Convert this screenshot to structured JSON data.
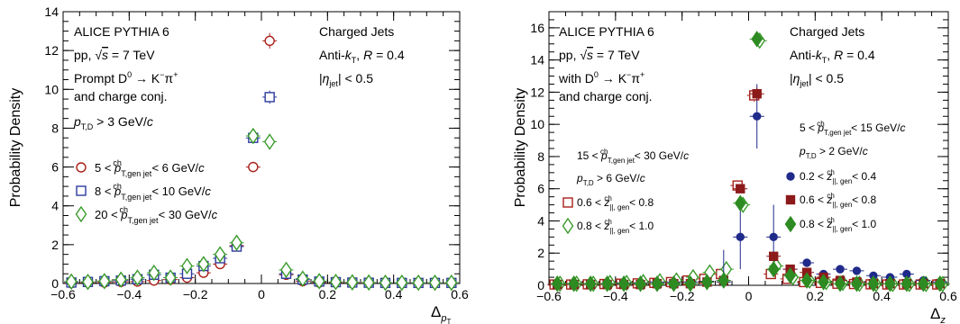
{
  "chart_data": [
    {
      "type": "scatter",
      "ylabel": "Probability Density",
      "xlabel": "Δ_{p_T}",
      "xlim": [
        -0.6,
        0.6
      ],
      "ylim": [
        0,
        14
      ],
      "xticks": [
        "−0.6",
        "−0.4",
        "−0.2",
        "0",
        "0.2",
        "0.4",
        "0.6"
      ],
      "yticks": [
        "0",
        "2",
        "4",
        "6",
        "8",
        "10",
        "12",
        "14"
      ],
      "annotations_left": [
        "ALICE PYTHIA 6",
        "pp, √s = 7 TeV",
        "Prompt D⁰ → K⁻π⁺",
        "and charge conj.",
        "p_T,D > 3 GeV/c"
      ],
      "annotations_right": [
        "Charged Jets",
        "Anti-kT, R = 0.4",
        "|η_jet| < 0.5"
      ],
      "legend_position": "middle-left",
      "series": [
        {
          "name": "5 < p_T,gen jet^ch < 6 GeV/c",
          "marker": "open-circle",
          "color": "#a8201a",
          "x": [
            -0.575,
            -0.525,
            -0.475,
            -0.425,
            -0.375,
            -0.325,
            -0.275,
            -0.225,
            -0.175,
            -0.125,
            -0.075,
            -0.025,
            0.025,
            0.075,
            0.125,
            0.175,
            0.225,
            0.275,
            0.325,
            0.375,
            0.425,
            0.475,
            0.525,
            0.575
          ],
          "y": [
            0.02,
            0.04,
            0.05,
            0.08,
            0.1,
            0.15,
            0.2,
            0.3,
            0.55,
            1.0,
            1.95,
            6.0,
            12.5,
            0.45,
            0.12,
            0.05,
            0.04,
            0.03,
            0.02,
            0.02,
            0.02,
            0.02,
            0.02,
            0.02
          ]
        },
        {
          "name": "8 < p_T,gen jet^ch < 10 GeV/c",
          "marker": "open-square",
          "color": "#2b3a9c",
          "x": [
            -0.575,
            -0.525,
            -0.475,
            -0.425,
            -0.375,
            -0.325,
            -0.275,
            -0.225,
            -0.175,
            -0.125,
            -0.075,
            -0.025,
            0.025,
            0.075,
            0.125,
            0.175,
            0.225,
            0.275,
            0.325,
            0.375,
            0.425,
            0.475,
            0.525,
            0.575
          ],
          "y": [
            0.05,
            0.08,
            0.12,
            0.15,
            0.22,
            0.45,
            0.3,
            0.5,
            0.9,
            1.3,
            1.9,
            7.5,
            9.6,
            0.5,
            0.2,
            0.1,
            0.07,
            0.05,
            0.04,
            0.03,
            0.03,
            0.03,
            0.03,
            0.03
          ]
        },
        {
          "name": "20 < p_T,gen jet^ch < 30 GeV/c",
          "marker": "open-diamond",
          "color": "#3a9b2b",
          "x": [
            -0.575,
            -0.525,
            -0.475,
            -0.425,
            -0.375,
            -0.325,
            -0.275,
            -0.225,
            -0.175,
            -0.125,
            -0.075,
            -0.025,
            0.025,
            0.075,
            0.125,
            0.175,
            0.225,
            0.275,
            0.325,
            0.375,
            0.425,
            0.475,
            0.525,
            0.575
          ],
          "y": [
            0.1,
            0.08,
            0.12,
            0.2,
            0.3,
            0.55,
            0.3,
            0.9,
            1.0,
            1.5,
            2.1,
            7.6,
            7.3,
            0.7,
            0.25,
            0.12,
            0.08,
            0.06,
            0.05,
            0.04,
            0.04,
            0.04,
            0.04,
            0.04
          ]
        }
      ]
    },
    {
      "type": "scatter",
      "ylabel": "Probability Density",
      "xlabel": "Δ_z",
      "xlim": [
        -0.6,
        0.6
      ],
      "ylim": [
        0,
        17
      ],
      "xticks": [
        "−0.6",
        "−0.4",
        "−0.2",
        "0",
        "0.2",
        "0.4",
        "0.6"
      ],
      "yticks": [
        "0",
        "2",
        "4",
        "6",
        "8",
        "10",
        "12",
        "14",
        "16"
      ],
      "annotations_left": [
        "ALICE PYTHIA 6",
        "pp, √s = 7 TeV",
        "with D⁰ → K⁻π⁺",
        "and charge conj."
      ],
      "annotations_right": [
        "Charged Jets",
        "Anti-kT, R = 0.4",
        "|η_jet| < 0.5"
      ],
      "legend_left_header": [
        "15 < p_T,gen jet^ch < 30 GeV/c",
        "p_T,D > 6 GeV/c"
      ],
      "legend_right_header": [
        "5 < p_T,gen jet^ch < 15 GeV/c",
        "p_T,D > 2 GeV/c"
      ],
      "series": [
        {
          "name": "0.6 < z_||,gen^ch < 0.8",
          "group": "high",
          "marker": "open-square",
          "color": "#a8201a",
          "x": [
            -0.575,
            -0.525,
            -0.475,
            -0.425,
            -0.375,
            -0.325,
            -0.275,
            -0.225,
            -0.175,
            -0.125,
            -0.075,
            -0.025,
            0.025,
            0.075,
            0.125,
            0.175,
            0.225,
            0.275,
            0.325,
            0.375,
            0.425,
            0.475,
            0.525,
            0.575
          ],
          "y": [
            0.05,
            0.05,
            0.06,
            0.08,
            0.1,
            0.12,
            0.15,
            0.2,
            0.3,
            0.4,
            0.7,
            6.2,
            11.8,
            0.7,
            0.4,
            0.2,
            0.15,
            0.1,
            0.08,
            0.06,
            0.05,
            0.05,
            0.05,
            0.05
          ]
        },
        {
          "name": "0.8 < z_||,gen^ch < 1.0",
          "group": "high",
          "marker": "open-diamond",
          "color": "#3a9b2b",
          "x": [
            -0.575,
            -0.525,
            -0.475,
            -0.425,
            -0.375,
            -0.325,
            -0.275,
            -0.225,
            -0.175,
            -0.125,
            -0.075,
            -0.025,
            0.025,
            0.075,
            0.125,
            0.175,
            0.225,
            0.275,
            0.325,
            0.375,
            0.425,
            0.475,
            0.525,
            0.575
          ],
          "y": [
            0.1,
            0.1,
            0.1,
            0.15,
            0.15,
            0.2,
            0.25,
            0.3,
            0.5,
            0.8,
            1.0,
            5.0,
            15.2,
            1.2,
            0.5,
            0.3,
            0.2,
            0.15,
            0.1,
            0.08,
            0.08,
            0.08,
            0.08,
            0.08
          ]
        },
        {
          "name": "0.2 < z_||,gen^ch < 0.4",
          "group": "low",
          "marker": "filled-circle",
          "color": "#1f2a8a",
          "x": [
            -0.575,
            -0.525,
            -0.475,
            -0.425,
            -0.375,
            -0.325,
            -0.275,
            -0.225,
            -0.175,
            -0.125,
            -0.075,
            -0.025,
            0.025,
            0.075,
            0.125,
            0.175,
            0.225,
            0.275,
            0.325,
            0.375,
            0.425,
            0.475,
            0.525,
            0.575
          ],
          "y": [
            0.1,
            0.1,
            0.1,
            0.1,
            0.15,
            0.15,
            0.2,
            0.2,
            0.2,
            0.25,
            0.2,
            3.0,
            10.5,
            3.0,
            1.0,
            1.4,
            0.7,
            1.0,
            0.9,
            0.6,
            0.5,
            0.7,
            0.3,
            0.2
          ]
        },
        {
          "name": "0.6 < z_||,gen^ch < 0.8",
          "group": "low",
          "marker": "filled-square",
          "color": "#8c1a1a",
          "x": [
            -0.575,
            -0.525,
            -0.475,
            -0.425,
            -0.375,
            -0.325,
            -0.275,
            -0.225,
            -0.175,
            -0.125,
            -0.075,
            -0.025,
            0.025,
            0.075,
            0.125,
            0.175,
            0.225,
            0.275,
            0.325,
            0.375,
            0.425,
            0.475,
            0.525,
            0.575
          ],
          "y": [
            0.05,
            0.05,
            0.05,
            0.05,
            0.05,
            0.05,
            0.1,
            0.1,
            0.1,
            0.2,
            0.3,
            6.0,
            11.9,
            1.8,
            1.0,
            0.8,
            0.5,
            0.3,
            0.2,
            0.1,
            0.1,
            0.1,
            0.1,
            0.1
          ]
        },
        {
          "name": "0.8 < z_||,gen^ch < 1.0",
          "group": "low",
          "marker": "filled-diamond",
          "color": "#2e8b22",
          "x": [
            -0.575,
            -0.525,
            -0.475,
            -0.425,
            -0.375,
            -0.325,
            -0.275,
            -0.225,
            -0.175,
            -0.125,
            -0.075,
            -0.025,
            0.025,
            0.075,
            0.125,
            0.175,
            0.225,
            0.275,
            0.325,
            0.375,
            0.425,
            0.475,
            0.525,
            0.575
          ],
          "y": [
            0.1,
            0.1,
            0.1,
            0.1,
            0.1,
            0.1,
            0.1,
            0.1,
            0.1,
            0.2,
            0.3,
            5.1,
            15.3,
            1.0,
            0.6,
            0.3,
            0.2,
            0.1,
            0.1,
            0.1,
            0.1,
            0.1,
            0.1,
            0.1
          ]
        }
      ]
    }
  ]
}
